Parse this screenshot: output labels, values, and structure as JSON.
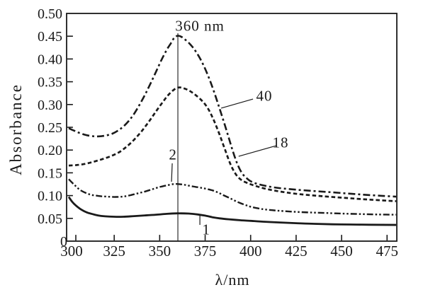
{
  "figure": {
    "background": "#ffffff",
    "ink": "#1a1a1a"
  },
  "chart_data": {
    "type": "line",
    "title": "",
    "xlabel": "λ/nm",
    "ylabel": "Absorbance",
    "xlim": [
      300,
      481
    ],
    "ylim": [
      0,
      0.5
    ],
    "grid": false,
    "legend_position": "none",
    "xticks": [
      {
        "value": 300,
        "label": "300"
      },
      {
        "value": 325,
        "label": "325"
      },
      {
        "value": 350,
        "label": "350"
      },
      {
        "value": 375,
        "label": "375"
      },
      {
        "value": 400,
        "label": "400"
      },
      {
        "value": 425,
        "label": "425"
      },
      {
        "value": 450,
        "label": "450"
      },
      {
        "value": 475,
        "label": "475"
      }
    ],
    "yticks": [
      {
        "value": 0.0,
        "label": "0"
      },
      {
        "value": 0.05,
        "label": "0.05"
      },
      {
        "value": 0.1,
        "label": "0.10"
      },
      {
        "value": 0.15,
        "label": "0.15"
      },
      {
        "value": 0.2,
        "label": "0.20"
      },
      {
        "value": 0.25,
        "label": "0.25"
      },
      {
        "value": 0.3,
        "label": "0.30"
      },
      {
        "value": 0.35,
        "label": "0.35"
      },
      {
        "value": 0.4,
        "label": "0.40"
      },
      {
        "value": 0.45,
        "label": "0.45"
      },
      {
        "value": 0.5,
        "label": "0.50"
      }
    ],
    "vline": {
      "x": 360,
      "y0": 0,
      "y1": 0.4565
    },
    "annotations": [
      {
        "id": "peak-wavelength",
        "text": "360 nm",
        "x": 372.1,
        "y": 0.472
      },
      {
        "id": "series-40",
        "text": "40",
        "x": 407.5,
        "y": 0.318,
        "leader": {
          "from": [
            401.3,
            0.312
          ],
          "to": [
            383.8,
            0.292
          ]
        }
      },
      {
        "id": "series-18",
        "text": "18",
        "x": 416.5,
        "y": 0.216,
        "leader": {
          "from": [
            414.1,
            0.2096
          ],
          "to": [
            393.4,
            0.1863
          ]
        }
      },
      {
        "id": "series-2",
        "text": "2",
        "x": 357.3,
        "y": 0.1894,
        "leader": {
          "from": [
            356.9,
            0.1708
          ],
          "to": [
            356.5,
            0.1304
          ]
        }
      },
      {
        "id": "series-1",
        "text": "1",
        "x": 375.6,
        "y": 0.0248,
        "leader": {
          "from": [
            372.1,
            0.0575
          ],
          "to": [
            372.1,
            0.0357
          ]
        }
      }
    ],
    "series": [
      {
        "name": "1",
        "style": "solid",
        "points": [
          [
            300,
            0.097
          ],
          [
            302,
            0.086
          ],
          [
            304,
            0.078
          ],
          [
            307,
            0.069
          ],
          [
            310,
            0.063
          ],
          [
            313,
            0.0595
          ],
          [
            316,
            0.0565
          ],
          [
            320,
            0.0545
          ],
          [
            325,
            0.0535
          ],
          [
            330,
            0.0535
          ],
          [
            336,
            0.055
          ],
          [
            342,
            0.0565
          ],
          [
            348,
            0.058
          ],
          [
            354,
            0.06
          ],
          [
            360,
            0.061
          ],
          [
            366,
            0.0605
          ],
          [
            371,
            0.0585
          ],
          [
            375,
            0.056
          ],
          [
            379,
            0.0525
          ],
          [
            383,
            0.05
          ],
          [
            388,
            0.048
          ],
          [
            394,
            0.046
          ],
          [
            400,
            0.0445
          ],
          [
            408,
            0.0425
          ],
          [
            416,
            0.041
          ],
          [
            425,
            0.0395
          ],
          [
            435,
            0.038
          ],
          [
            445,
            0.037
          ],
          [
            455,
            0.0365
          ],
          [
            465,
            0.036
          ],
          [
            481,
            0.0355
          ]
        ]
      },
      {
        "name": "2",
        "style": "dash-dot-dot",
        "points": [
          [
            300,
            0.136
          ],
          [
            303,
            0.124
          ],
          [
            306,
            0.113
          ],
          [
            309,
            0.1065
          ],
          [
            312,
            0.102
          ],
          [
            315,
            0.1
          ],
          [
            318,
            0.0985
          ],
          [
            322,
            0.0975
          ],
          [
            326,
            0.097
          ],
          [
            330,
            0.098
          ],
          [
            334,
            0.101
          ],
          [
            338,
            0.105
          ],
          [
            342,
            0.109
          ],
          [
            346,
            0.114
          ],
          [
            350,
            0.119
          ],
          [
            354,
            0.1225
          ],
          [
            358,
            0.1255
          ],
          [
            361,
            0.125
          ],
          [
            364,
            0.1235
          ],
          [
            367,
            0.121
          ],
          [
            370,
            0.119
          ],
          [
            373,
            0.117
          ],
          [
            376,
            0.1145
          ],
          [
            379,
            0.1115
          ],
          [
            382,
            0.107
          ],
          [
            385,
            0.101
          ],
          [
            388,
            0.0955
          ],
          [
            391,
            0.0895
          ],
          [
            394,
            0.084
          ],
          [
            397,
            0.0795
          ],
          [
            400,
            0.0755
          ],
          [
            404,
            0.072
          ],
          [
            408,
            0.0695
          ],
          [
            413,
            0.0675
          ],
          [
            418,
            0.066
          ],
          [
            424,
            0.0645
          ],
          [
            432,
            0.063
          ],
          [
            440,
            0.062
          ],
          [
            450,
            0.0605
          ],
          [
            460,
            0.0595
          ],
          [
            470,
            0.0585
          ],
          [
            481,
            0.058
          ]
        ]
      },
      {
        "name": "18",
        "style": "dashed",
        "points": [
          [
            300,
            0.166
          ],
          [
            304,
            0.167
          ],
          [
            308,
            0.169
          ],
          [
            312,
            0.1725
          ],
          [
            316,
            0.177
          ],
          [
            320,
            0.182
          ],
          [
            324,
            0.188
          ],
          [
            328,
            0.196
          ],
          [
            332,
            0.208
          ],
          [
            336,
            0.223
          ],
          [
            340,
            0.241
          ],
          [
            344,
            0.262
          ],
          [
            348,
            0.285
          ],
          [
            352,
            0.307
          ],
          [
            355,
            0.322
          ],
          [
            358,
            0.333
          ],
          [
            360,
            0.337
          ],
          [
            362,
            0.337
          ],
          [
            366,
            0.331
          ],
          [
            370,
            0.32
          ],
          [
            374,
            0.305
          ],
          [
            377,
            0.288
          ],
          [
            380,
            0.263
          ],
          [
            383,
            0.233
          ],
          [
            386,
            0.2
          ],
          [
            389,
            0.168
          ],
          [
            392,
            0.146
          ],
          [
            395,
            0.134
          ],
          [
            398,
            0.128
          ],
          [
            401,
            0.1235
          ],
          [
            405,
            0.1185
          ],
          [
            410,
            0.1135
          ],
          [
            416,
            0.109
          ],
          [
            423,
            0.105
          ],
          [
            431,
            0.1015
          ],
          [
            440,
            0.0985
          ],
          [
            450,
            0.0955
          ],
          [
            460,
            0.0925
          ],
          [
            470,
            0.09
          ],
          [
            481,
            0.0875
          ]
        ]
      },
      {
        "name": "40",
        "style": "dash-dot",
        "points": [
          [
            300,
            0.248
          ],
          [
            303,
            0.2425
          ],
          [
            306,
            0.2375
          ],
          [
            309,
            0.2335
          ],
          [
            312,
            0.231
          ],
          [
            315,
            0.23
          ],
          [
            318,
            0.2305
          ],
          [
            321,
            0.2325
          ],
          [
            324,
            0.236
          ],
          [
            327,
            0.2425
          ],
          [
            330,
            0.2515
          ],
          [
            333,
            0.264
          ],
          [
            336,
            0.28
          ],
          [
            339,
            0.3
          ],
          [
            342,
            0.322
          ],
          [
            345,
            0.3465
          ],
          [
            348,
            0.372
          ],
          [
            351,
            0.398
          ],
          [
            354,
            0.421
          ],
          [
            356,
            0.4335
          ],
          [
            358,
            0.4465
          ],
          [
            360,
            0.451
          ],
          [
            362,
            0.4485
          ],
          [
            364,
            0.4425
          ],
          [
            366,
            0.4355
          ],
          [
            368,
            0.4265
          ],
          [
            370,
            0.4155
          ],
          [
            372,
            0.4025
          ],
          [
            374,
            0.387
          ],
          [
            376,
            0.369
          ],
          [
            378,
            0.349
          ],
          [
            380,
            0.3265
          ],
          [
            382,
            0.3025
          ],
          [
            384,
            0.278
          ],
          [
            386,
            0.2525
          ],
          [
            388,
            0.2265
          ],
          [
            390,
            0.2005
          ],
          [
            392,
            0.1765
          ],
          [
            394,
            0.158
          ],
          [
            396,
            0.1455
          ],
          [
            398,
            0.1375
          ],
          [
            400,
            0.1315
          ],
          [
            403,
            0.1265
          ],
          [
            407,
            0.1225
          ],
          [
            412,
            0.1185
          ],
          [
            418,
            0.1155
          ],
          [
            425,
            0.113
          ],
          [
            433,
            0.1105
          ],
          [
            442,
            0.108
          ],
          [
            452,
            0.105
          ],
          [
            462,
            0.102
          ],
          [
            472,
            0.0995
          ],
          [
            481,
            0.0975
          ]
        ]
      }
    ]
  }
}
